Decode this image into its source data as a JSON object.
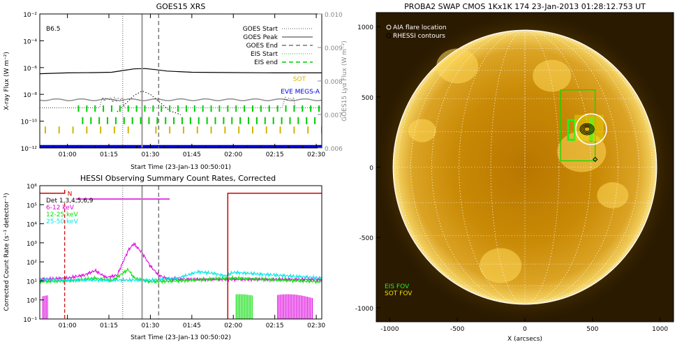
{
  "chart_data": [
    {
      "type": "line",
      "title": "GOES15 XRS",
      "xlabel": "Start Time (23-Jan-13 00:50:01)",
      "ylabel": "X-ray Flux (W m⁻²)",
      "y2label": "GOES15 Lyα Flux (W m⁻²)",
      "flare_class": "B6.5",
      "xlim": [
        "00:50",
        "02:32"
      ],
      "ylim": [
        1e-12,
        0.01
      ],
      "ylog": true,
      "y2lim": [
        0.006,
        0.01
      ],
      "xticks": [
        "01:00",
        "01:15",
        "01:30",
        "01:45",
        "02:00",
        "02:15",
        "02:30"
      ],
      "yticks": [
        "10⁻¹²",
        "10⁻¹⁰",
        "10⁻⁸",
        "10⁻⁶",
        "10⁻⁴",
        "10⁻²"
      ],
      "y2ticks": [
        "0.006",
        "0.007",
        "0.008",
        "0.009",
        "0.010"
      ],
      "legend": [
        "GOES Start",
        "GOES Peak",
        "GOES End",
        "EIS Start",
        "EIS end",
        "SOT",
        "EVE MEGS-A"
      ],
      "markers": {
        "goes_start": "01:20",
        "goes_peak": "01:27",
        "goes_end": "01:33"
      },
      "series": [
        {
          "name": "",
          "x": [
            "00:50",
            "01:00",
            "01:10",
            "01:16",
            "01:20",
            "01:24",
            "01:28",
            "01:32",
            "01:36",
            "01:45",
            "02:00",
            "02:15",
            "02:32"
          ],
          "y": [
            3.5e-07,
            4e-07,
            4.2e-07,
            4.5e-07,
            6e-07,
            8e-07,
            8.5e-07,
            7e-07,
            5.5e-07,
            4.5e-07,
            4.2e-07,
            4e-07,
            4e-07
          ]
        },
        {
          "name": "",
          "x": [
            "01:18",
            "01:21",
            "01:24",
            "01:27",
            "01:30",
            "01:33",
            "01:37",
            "01:41"
          ],
          "y": [
            5e-10,
            2e-09,
            8e-09,
            1.8e-08,
            1e-08,
            3e-09,
            6e-10,
            3e-10
          ]
        }
      ]
    },
    {
      "type": "line",
      "title": "HESSI Observing Summary Count Rates, Corrected",
      "xlabel": "Start Time (23-Jan-13 00:50:02)",
      "ylabel": "Corrected Count Rate (s⁻¹ detector⁻¹)",
      "xlim": [
        "00:50",
        "02:32"
      ],
      "ylim": [
        0.1,
        1000000.0
      ],
      "ylog": true,
      "xticks": [
        "01:00",
        "01:15",
        "01:30",
        "01:45",
        "02:00",
        "02:15",
        "02:30"
      ],
      "yticks": [
        "10⁻¹",
        "10⁰",
        "10¹",
        "10²",
        "10³",
        "10⁴",
        "10⁵",
        "10⁶"
      ],
      "flag": "N",
      "legend": [
        "Det 1,3,4,5,6,9",
        "6-12 keV",
        "12-25 keV",
        "25-50 keV"
      ],
      "series": [
        {
          "name": "6-12 keV",
          "x": [
            "00:50",
            "01:00",
            "01:06",
            "01:10",
            "01:14",
            "01:18",
            "01:22",
            "01:24",
            "01:27",
            "01:30",
            "01:33",
            "01:36",
            "01:45",
            "01:55",
            "02:32"
          ],
          "y": [
            12,
            14,
            20,
            35,
            15,
            20,
            400,
            900,
            300,
            60,
            20,
            13,
            12,
            12,
            12
          ]
        },
        {
          "name": "12-25 keV",
          "x": [
            "00:50",
            "01:00",
            "01:06",
            "01:10",
            "01:16",
            "01:22",
            "01:24",
            "01:27",
            "01:30",
            "01:40",
            "01:55",
            "02:00",
            "02:32"
          ],
          "y": [
            9,
            10,
            12,
            14,
            10,
            40,
            15,
            11,
            9,
            10,
            13,
            14,
            9
          ]
        },
        {
          "name": "25-50 keV",
          "x": [
            "00:50",
            "01:00",
            "01:10",
            "01:20",
            "01:30",
            "01:40",
            "01:47",
            "01:53",
            "01:57",
            "02:00",
            "02:32"
          ],
          "y": [
            12,
            11,
            11,
            11,
            11,
            14,
            30,
            25,
            18,
            28,
            14
          ]
        }
      ]
    },
    {
      "type": "image",
      "title": "PROBA2 SWAP CMOS 1Kx1K 174 23-Jan-2013 01:28:12.753 UT",
      "xlabel": "X (arcsecs)",
      "xlim": [
        -1100,
        1100
      ],
      "ylim": [
        -1100,
        1100
      ],
      "xticks": [
        "-1000",
        "-500",
        "0",
        "500",
        "1000"
      ],
      "yticks": [
        "-1000",
        "-500",
        "0",
        "500",
        "1000"
      ],
      "legend": [
        "AIA flare location",
        "RHESSI contours"
      ],
      "fov_labels": [
        "EIS FOV",
        "SOT FOV"
      ],
      "solar_radius": 975,
      "flare_location": [
        490,
        270
      ],
      "eis_fov": [
        265,
        45,
        520,
        550
      ],
      "sot_fov": [
        370,
        190,
        580,
        370
      ]
    }
  ],
  "colors": {
    "goes": "#000000",
    "goes_low": "#8c8c8c",
    "eis": "#00cc00",
    "sot": "#d4b400",
    "eve": "#0000dd",
    "hessi_6_12": "#dd00dd",
    "hessi_12_25": "#00dd00",
    "hessi_25_50": "#00e5e5",
    "hessi_flags": "#cc0000",
    "sun_center": "#c98600",
    "sun_limb": "#f7d96b"
  }
}
